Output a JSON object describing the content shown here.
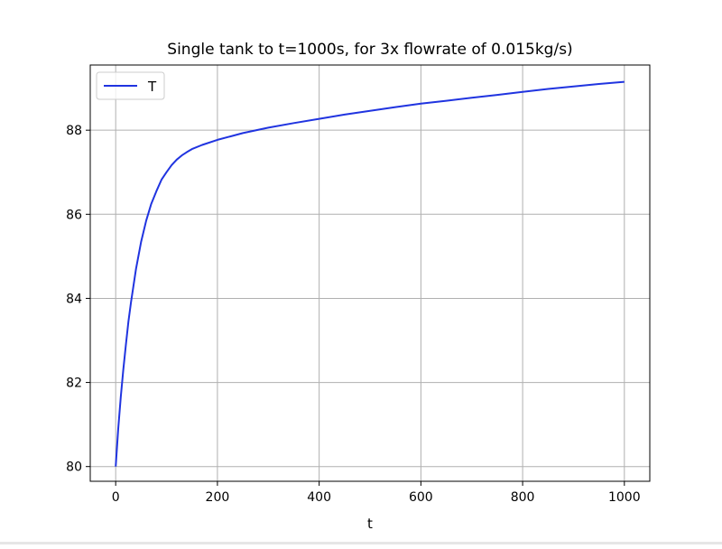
{
  "chart_data": {
    "type": "line",
    "title": "Single tank to t=1000s, for 3x flowrate of 0.015kg/s)",
    "xlabel": "t",
    "ylabel": "",
    "xlim": [
      -50,
      1050
    ],
    "ylim": [
      79.65,
      89.55
    ],
    "xticks": [
      0,
      200,
      400,
      600,
      800,
      1000
    ],
    "yticks": [
      80,
      82,
      84,
      86,
      88
    ],
    "xtick_labels": [
      "0",
      "200",
      "400",
      "600",
      "800",
      "1000"
    ],
    "ytick_labels": [
      "80",
      "82",
      "84",
      "86",
      "88"
    ],
    "grid": true,
    "legend_position": "upper-left",
    "series": [
      {
        "name": "T",
        "color": "#2034e0",
        "x": [
          0,
          5,
          10,
          15,
          20,
          25,
          30,
          40,
          50,
          60,
          70,
          80,
          90,
          100,
          110,
          120,
          130,
          140,
          150,
          170,
          200,
          250,
          300,
          350,
          400,
          450,
          500,
          550,
          600,
          650,
          700,
          750,
          800,
          850,
          900,
          950,
          1000
        ],
        "y": [
          80.0,
          80.9,
          81.65,
          82.3,
          82.9,
          83.45,
          83.9,
          84.7,
          85.35,
          85.85,
          86.25,
          86.55,
          86.82,
          87.0,
          87.17,
          87.3,
          87.4,
          87.48,
          87.55,
          87.65,
          87.77,
          87.93,
          88.06,
          88.17,
          88.27,
          88.37,
          88.46,
          88.55,
          88.63,
          88.7,
          88.77,
          88.84,
          88.91,
          88.98,
          89.04,
          89.1,
          89.15
        ]
      }
    ]
  }
}
